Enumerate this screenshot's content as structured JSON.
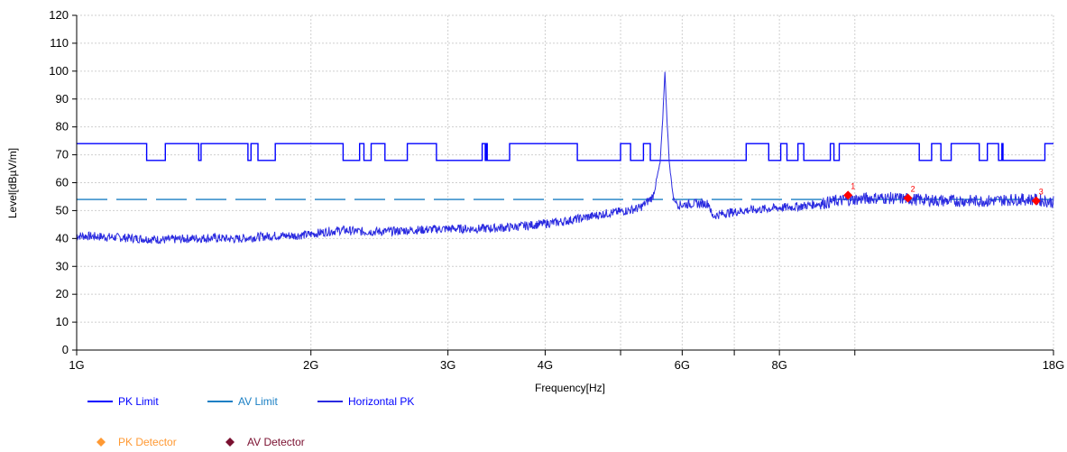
{
  "chart_data": {
    "type": "line",
    "xlabel": "Frequency[Hz]",
    "ylabel": "Level[dBµV/m]",
    "x_scale": "log",
    "xlim_ghz": [
      1,
      18
    ],
    "ylim": [
      0,
      120
    ],
    "grid": true,
    "y_ticks": [
      0,
      10,
      20,
      30,
      40,
      50,
      60,
      70,
      80,
      90,
      100,
      110,
      120
    ],
    "x_tick_labels": [
      {
        "ghz": 1,
        "label": "1G"
      },
      {
        "ghz": 2,
        "label": "2G"
      },
      {
        "ghz": 3,
        "label": "3G"
      },
      {
        "ghz": 4,
        "label": "4G"
      },
      {
        "ghz": 6,
        "label": "6G"
      },
      {
        "ghz": 8,
        "label": "8G"
      },
      {
        "ghz": 18,
        "label": "18G"
      }
    ],
    "x_minor_ghz": [
      5,
      7,
      10
    ],
    "series": [
      {
        "name": "PK Limit",
        "color": "#0000ff",
        "style": "step",
        "base": 74,
        "restricted_level": 68,
        "restricted_bands_ghz": [
          [
            1.23,
            1.3
          ],
          [
            1.435,
            1.445
          ],
          [
            1.66,
            1.675
          ],
          [
            1.71,
            1.8
          ],
          [
            2.2,
            2.31
          ],
          [
            2.34,
            2.39
          ],
          [
            2.49,
            2.66
          ],
          [
            2.9,
            3.32
          ],
          [
            3.35,
            3.36
          ],
          [
            3.37,
            3.6
          ],
          [
            4.4,
            5.0
          ],
          [
            5.15,
            5.35
          ],
          [
            5.46,
            7.25
          ],
          [
            7.75,
            8.03
          ],
          [
            8.18,
            8.45
          ],
          [
            8.6,
            9.3
          ],
          [
            9.4,
            9.55
          ],
          [
            12.1,
            12.55
          ],
          [
            12.9,
            13.3
          ],
          [
            14.45,
            14.8
          ],
          [
            15.3,
            15.45
          ],
          [
            15.5,
            17.55
          ]
        ]
      },
      {
        "name": "AV Limit",
        "color": "#1a7fc4",
        "style": "dashed",
        "value": 54
      },
      {
        "name": "Horizontal PK",
        "color": "#2a2ae0",
        "style": "noisy",
        "points": [
          [
            1.0,
            41
          ],
          [
            1.1,
            40.5
          ],
          [
            1.2,
            40
          ],
          [
            1.3,
            39.5
          ],
          [
            1.4,
            40
          ],
          [
            1.5,
            40.2
          ],
          [
            1.6,
            39.8
          ],
          [
            1.7,
            40.5
          ],
          [
            1.8,
            41
          ],
          [
            1.9,
            41
          ],
          [
            2.0,
            41.5
          ],
          [
            2.1,
            42.5
          ],
          [
            2.2,
            43
          ],
          [
            2.3,
            42.5
          ],
          [
            2.5,
            42.5
          ],
          [
            2.7,
            43
          ],
          [
            3.0,
            43.5
          ],
          [
            3.3,
            43.5
          ],
          [
            3.6,
            44
          ],
          [
            3.9,
            45
          ],
          [
            4.2,
            46
          ],
          [
            4.5,
            47.5
          ],
          [
            4.8,
            49
          ],
          [
            5.1,
            50
          ],
          [
            5.3,
            51
          ],
          [
            5.5,
            55
          ],
          [
            5.62,
            67
          ],
          [
            5.66,
            81
          ],
          [
            5.7,
            100
          ],
          [
            5.74,
            81
          ],
          [
            5.78,
            66
          ],
          [
            5.85,
            54
          ],
          [
            5.95,
            52
          ],
          [
            6.2,
            52.5
          ],
          [
            6.5,
            52.5
          ],
          [
            6.55,
            48
          ],
          [
            6.8,
            49
          ],
          [
            7.2,
            50
          ],
          [
            7.6,
            50.5
          ],
          [
            8.0,
            51
          ],
          [
            8.5,
            51.5
          ],
          [
            9.0,
            52.5
          ],
          [
            9.5,
            53.5
          ],
          [
            10.0,
            54
          ],
          [
            10.5,
            54.5
          ],
          [
            11.0,
            54.5
          ],
          [
            12.0,
            54
          ],
          [
            13.0,
            53.5
          ],
          [
            14.0,
            53.5
          ],
          [
            15.0,
            53.5
          ],
          [
            16.0,
            54
          ],
          [
            17.0,
            54
          ],
          [
            18.0,
            53
          ]
        ]
      }
    ],
    "markers": [
      {
        "label": "1",
        "ghz": 9.8,
        "value": 55.5,
        "color": "#ff0000"
      },
      {
        "label": "2",
        "ghz": 11.7,
        "value": 54.5,
        "color": "#ff0000"
      },
      {
        "label": "3",
        "ghz": 17.1,
        "value": 53.5,
        "color": "#ff0000"
      }
    ],
    "legend": [
      {
        "name": "PK Limit",
        "kind": "line",
        "color": "#0000ff",
        "text_color": "#0000ff"
      },
      {
        "name": "AV Limit",
        "kind": "line",
        "color": "#1a7fc4",
        "text_color": "#1a7fc4"
      },
      {
        "name": "Horizontal PK",
        "kind": "line",
        "color": "#2a2ae0",
        "text_color": "#0000ff"
      },
      {
        "name": "PK Detector",
        "kind": "diamond",
        "color": "#ff9933",
        "text_color": "#ff9933"
      },
      {
        "name": "AV Detector",
        "kind": "diamond",
        "color": "#7a1030",
        "text_color": "#7a1030"
      }
    ]
  }
}
